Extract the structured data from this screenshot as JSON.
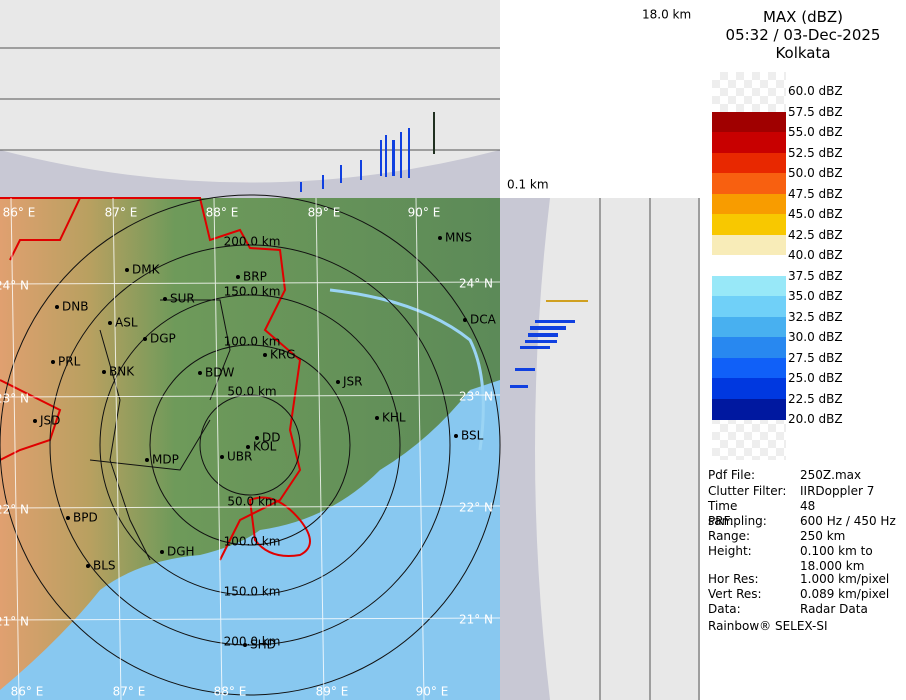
{
  "header": {
    "scale_top": "18.0 km",
    "scale_bottom": "0.1 km"
  },
  "legend": {
    "title": "MAX (dBZ)",
    "time": "05:32 / 03-Dec-2025",
    "site": "Kolkata",
    "labels": [
      "60.0 dBZ",
      "57.5 dBZ",
      "55.0 dBZ",
      "52.5 dBZ",
      "50.0 dBZ",
      "47.5 dBZ",
      "45.0 dBZ",
      "42.5 dBZ",
      "40.0 dBZ",
      "37.5 dBZ",
      "35.0 dBZ",
      "32.5 dBZ",
      "30.0 dBZ",
      "27.5 dBZ",
      "25.0 dBZ",
      "22.5 dBZ",
      "20.0 dBZ"
    ],
    "band_colors": [
      "transparent",
      "#a00000",
      "#c80000",
      "#e82800",
      "#f86010",
      "#f89c00",
      "#f8c800",
      "#f8ecb8",
      "#ffffff",
      "#98e8f8",
      "#70d0f8",
      "#48b0f0",
      "#2888f0",
      "#1060f8",
      "#0038e0",
      "#0018a0"
    ]
  },
  "map": {
    "longitudes": [
      "86° E",
      "87° E",
      "88° E",
      "89° E",
      "90° E"
    ],
    "latitudes": [
      "24° N",
      "23° N",
      "22° N",
      "21° N"
    ],
    "rings": [
      "50.0 km",
      "100.0 km",
      "150.0 km",
      "200.0 km"
    ],
    "cities": [
      "MNS",
      "DMK",
      "BRP",
      "SUR",
      "DNB",
      "ASL",
      "DGP",
      "DCA",
      "KRG",
      "PRL",
      "BNK",
      "BDW",
      "JSR",
      "KHL",
      "JSD",
      "BSL",
      "DD",
      "KOL",
      "UBR",
      "MDP",
      "BPD",
      "DGH",
      "BLS",
      "SHD"
    ]
  },
  "info": {
    "rows": [
      {
        "key": "Pdf File:",
        "value": "250Z.max"
      },
      {
        "key": "Clutter Filter:",
        "value": "IIRDoppler 7"
      },
      {
        "key": "Time sampling:",
        "value": "48"
      },
      {
        "key": "PRF:",
        "value": "600 Hz / 450 Hz"
      },
      {
        "key": "Range:",
        "value": "250 km"
      },
      {
        "key": "Height:",
        "value": "0.100 km to 18.000 km"
      },
      {
        "key": "Hor Res:",
        "value": "1.000 km/pixel"
      },
      {
        "key": "Vert Res:",
        "value": "0.089 km/pixel"
      },
      {
        "key": "Data:",
        "value": "Radar Data"
      }
    ],
    "footer": "Rainbow® SELEX-SI"
  }
}
